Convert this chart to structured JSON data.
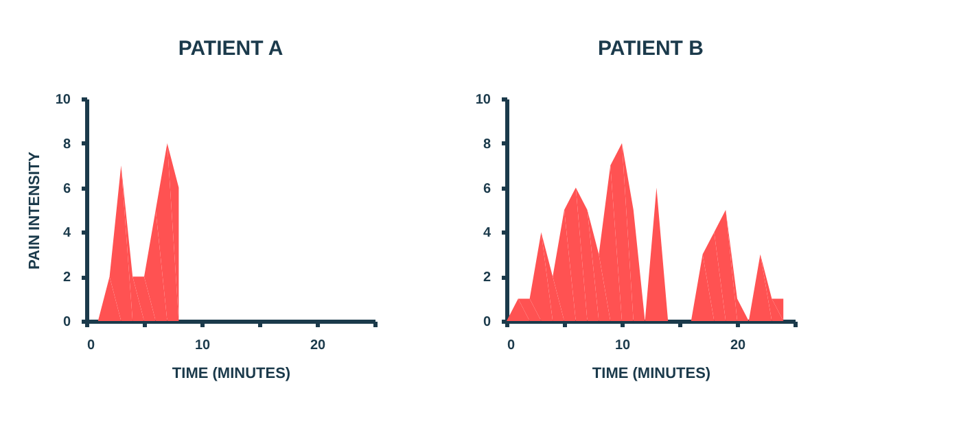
{
  "chart_data": [
    {
      "type": "area",
      "title": "PATIENT A",
      "xlabel": "TIME (MINUTES)",
      "ylabel": "PAIN INTENSITY",
      "xlim": [
        0,
        25
      ],
      "ylim": [
        0,
        10
      ],
      "xticks": [
        0,
        {
          "value": 5,
          "label": null
        },
        10,
        {
          "value": 15,
          "label": null
        },
        20,
        {
          "value": 25,
          "label": null
        }
      ],
      "yticks": [
        0,
        2,
        4,
        6,
        8,
        10
      ],
      "grid": false,
      "x": [
        1,
        2,
        3,
        4,
        5,
        6,
        7,
        8,
        8
      ],
      "series": [
        {
          "color": "#ff5252",
          "values": [
            0,
            2,
            7,
            2,
            2,
            5,
            8,
            6,
            0
          ]
        }
      ]
    },
    {
      "type": "area",
      "title": "PATIENT B",
      "xlabel": "TIME (MINUTES)",
      "xlim": [
        0,
        25
      ],
      "ylim": [
        0,
        10
      ],
      "xticks": [
        0,
        {
          "value": 5,
          "label": null
        },
        10,
        {
          "value": 15,
          "label": null
        },
        20,
        {
          "value": 25,
          "label": null
        }
      ],
      "yticks": [
        0,
        2,
        4,
        6,
        8,
        10
      ],
      "grid": false,
      "x": [
        0,
        1,
        2,
        3,
        4,
        5,
        6,
        7,
        8,
        9,
        10,
        11,
        12,
        13,
        14,
        16,
        17,
        18,
        19,
        20,
        21,
        22,
        23,
        24,
        24
      ],
      "series": [
        {
          "color": "#ff5252",
          "values": [
            0,
            1,
            1,
            4,
            2,
            5,
            6,
            5,
            3,
            7,
            8,
            5,
            0,
            6,
            0,
            0,
            3,
            4,
            5,
            1,
            0,
            3,
            1,
            1,
            0
          ]
        }
      ]
    }
  ]
}
